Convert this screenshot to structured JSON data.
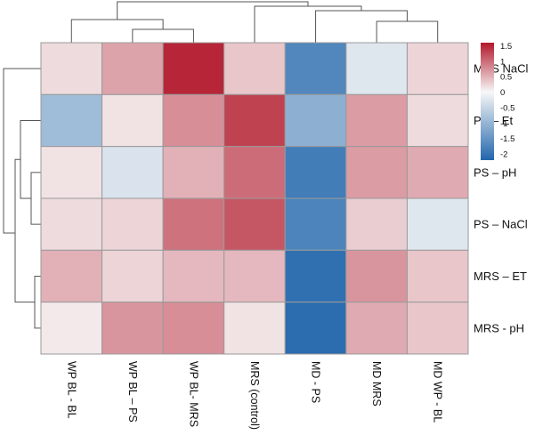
{
  "chart_data": {
    "type": "heatmap",
    "title": "",
    "rows": [
      "MRS NaCl",
      "PS – Et",
      "PS – pH",
      "PS – NaCl",
      "MRS – ET",
      "MRS - pH"
    ],
    "columns": [
      "WP BL - BL",
      "WP BL – PS",
      "WP BL- MRS",
      "MRS (control)",
      "MD - PS",
      "MD MRS",
      "MD WP - BL"
    ],
    "values": [
      [
        0.2,
        0.6,
        1.5,
        0.35,
        -1.7,
        -0.25,
        0.25
      ],
      [
        -0.9,
        0.15,
        0.75,
        1.3,
        -1.1,
        0.65,
        0.2
      ],
      [
        0.15,
        -0.3,
        0.5,
        1.0,
        -1.85,
        0.65,
        0.55
      ],
      [
        0.2,
        0.25,
        0.95,
        1.15,
        -1.75,
        0.3,
        -0.25
      ],
      [
        0.5,
        0.25,
        0.45,
        0.45,
        -2.05,
        0.7,
        0.35
      ],
      [
        0.1,
        0.7,
        0.75,
        0.15,
        -2.1,
        0.55,
        0.35
      ]
    ],
    "legend": {
      "ticks": [
        "1.5",
        "1",
        "0.5",
        "0",
        "-0.5",
        "-1",
        "-1.5",
        "-2"
      ],
      "min": -2.2,
      "max": 1.6,
      "colors": {
        "low": "#2166ac",
        "mid": "#f7f7f7",
        "high": "#b2182b"
      }
    },
    "legend_position": "right",
    "row_dendrogram": true,
    "column_dendrogram": true
  }
}
